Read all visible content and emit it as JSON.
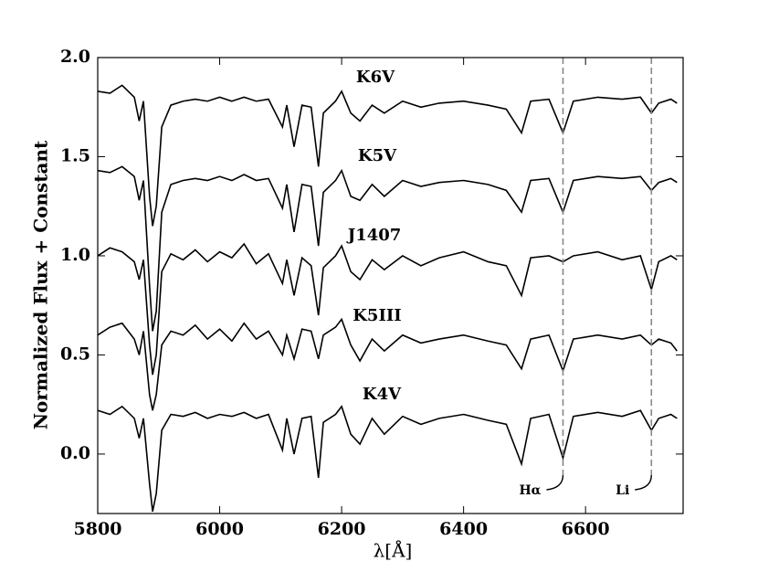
{
  "chart_data": {
    "type": "line",
    "xlabel": "λ[Å]",
    "ylabel": "Normalized Flux + Constant",
    "x": [
      5800,
      5820,
      5840,
      5860,
      5868,
      5875,
      5885,
      5890,
      5896,
      5905,
      5920,
      5940,
      5960,
      5980,
      6000,
      6020,
      6040,
      6060,
      6080,
      6103,
      6110,
      6122,
      6135,
      6150,
      6162,
      6170,
      6190,
      6200,
      6215,
      6230,
      6250,
      6270,
      6300,
      6330,
      6360,
      6400,
      6440,
      6470,
      6495,
      6510,
      6540,
      6563,
      6580,
      6620,
      6660,
      6690,
      6708,
      6720,
      6740,
      6750
    ],
    "series": [
      {
        "name": "K6V",
        "color": "#000000",
        "values": [
          1.83,
          1.82,
          1.86,
          1.8,
          1.68,
          1.78,
          1.3,
          1.15,
          1.25,
          1.65,
          1.76,
          1.78,
          1.79,
          1.78,
          1.8,
          1.78,
          1.8,
          1.78,
          1.79,
          1.65,
          1.76,
          1.55,
          1.76,
          1.75,
          1.45,
          1.72,
          1.78,
          1.83,
          1.72,
          1.68,
          1.76,
          1.72,
          1.78,
          1.75,
          1.77,
          1.78,
          1.76,
          1.74,
          1.62,
          1.78,
          1.79,
          1.62,
          1.78,
          1.8,
          1.79,
          1.8,
          1.72,
          1.77,
          1.79,
          1.77
        ]
      },
      {
        "name": "K5V",
        "color": "#000000",
        "values": [
          1.43,
          1.42,
          1.45,
          1.4,
          1.28,
          1.38,
          0.85,
          0.62,
          0.72,
          1.22,
          1.36,
          1.38,
          1.39,
          1.38,
          1.4,
          1.38,
          1.41,
          1.38,
          1.39,
          1.24,
          1.36,
          1.12,
          1.36,
          1.35,
          1.05,
          1.32,
          1.38,
          1.43,
          1.3,
          1.28,
          1.36,
          1.3,
          1.38,
          1.35,
          1.37,
          1.38,
          1.36,
          1.33,
          1.22,
          1.38,
          1.39,
          1.22,
          1.38,
          1.4,
          1.39,
          1.4,
          1.33,
          1.37,
          1.39,
          1.37
        ]
      },
      {
        "name": "J1407",
        "color": "#000000",
        "values": [
          1.0,
          1.04,
          1.02,
          0.97,
          0.88,
          0.98,
          0.55,
          0.4,
          0.5,
          0.92,
          1.01,
          0.98,
          1.03,
          0.97,
          1.02,
          0.99,
          1.06,
          0.96,
          1.01,
          0.86,
          0.98,
          0.8,
          0.99,
          0.95,
          0.7,
          0.94,
          1.0,
          1.05,
          0.92,
          0.88,
          0.98,
          0.93,
          1.0,
          0.95,
          0.99,
          1.02,
          0.97,
          0.95,
          0.8,
          0.99,
          1.0,
          0.97,
          1.0,
          1.02,
          0.98,
          1.0,
          0.83,
          0.97,
          1.0,
          0.98
        ]
      },
      {
        "name": "K5III",
        "color": "#000000",
        "values": [
          0.6,
          0.64,
          0.66,
          0.58,
          0.5,
          0.62,
          0.3,
          0.22,
          0.3,
          0.55,
          0.62,
          0.6,
          0.65,
          0.58,
          0.63,
          0.57,
          0.66,
          0.58,
          0.62,
          0.5,
          0.6,
          0.48,
          0.63,
          0.62,
          0.48,
          0.6,
          0.64,
          0.68,
          0.55,
          0.47,
          0.58,
          0.52,
          0.6,
          0.56,
          0.58,
          0.6,
          0.57,
          0.55,
          0.43,
          0.58,
          0.6,
          0.42,
          0.58,
          0.6,
          0.58,
          0.6,
          0.55,
          0.58,
          0.56,
          0.52
        ]
      },
      {
        "name": "K4V",
        "color": "#000000",
        "values": [
          0.22,
          0.2,
          0.24,
          0.18,
          0.08,
          0.18,
          -0.15,
          -0.29,
          -0.2,
          0.12,
          0.2,
          0.19,
          0.21,
          0.18,
          0.2,
          0.19,
          0.21,
          0.18,
          0.2,
          0.02,
          0.18,
          0.0,
          0.18,
          0.19,
          -0.12,
          0.16,
          0.2,
          0.24,
          0.1,
          0.05,
          0.18,
          0.1,
          0.19,
          0.15,
          0.18,
          0.2,
          0.17,
          0.15,
          -0.05,
          0.18,
          0.2,
          -0.02,
          0.19,
          0.21,
          0.19,
          0.22,
          0.12,
          0.18,
          0.2,
          0.18
        ]
      }
    ],
    "annotations": [
      {
        "text": "Hα",
        "x": 6563
      },
      {
        "text": "Li",
        "x": 6708
      }
    ],
    "xlim": [
      5800,
      6760
    ],
    "ylim": [
      -0.3,
      2.0
    ],
    "xticks": [
      5800,
      6000,
      6200,
      6400,
      6600
    ],
    "yticks": [
      {
        "value": 0,
        "label": "0.0"
      },
      {
        "value": 0.5,
        "label": "0.5"
      },
      {
        "value": 1,
        "label": "1.0"
      },
      {
        "value": 1.5,
        "label": "1.5"
      },
      {
        "value": 2,
        "label": "2.0"
      }
    ]
  }
}
